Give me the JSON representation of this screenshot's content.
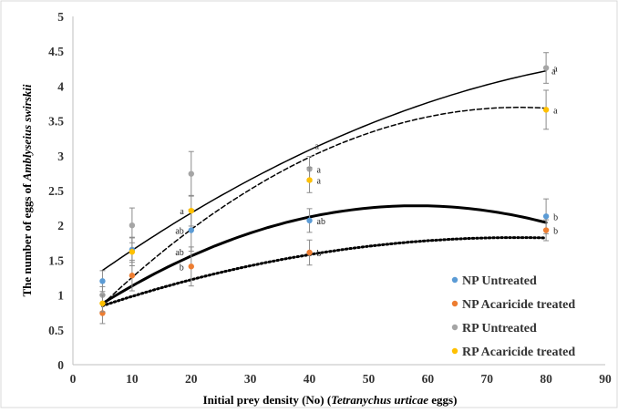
{
  "chart_data": {
    "type": "scatter",
    "title": "",
    "xlabel_prefix": "Initial prey density (No) (",
    "xlabel_italic": "Tetranychus urticae",
    "xlabel_suffix": " eggs)",
    "ylabel_prefix": "The number of eggs of ",
    "ylabel_italic": "Amblyseius swirskii",
    "xlim": [
      0,
      90
    ],
    "ylim": [
      0,
      5
    ],
    "xticks": [
      0,
      10,
      20,
      30,
      40,
      50,
      60,
      70,
      80,
      90
    ],
    "yticks": [
      0,
      0.5,
      1,
      1.5,
      2,
      2.5,
      3,
      3.5,
      4,
      4.5,
      5
    ],
    "grid": false,
    "legend_position": "bottom-right",
    "x": [
      5,
      10,
      20,
      40,
      80
    ],
    "series": [
      {
        "name": "NP Untreated",
        "color": "#5b9bd5",
        "values": [
          1.2,
          1.65,
          1.93,
          2.07,
          2.13
        ],
        "errors": [
          0.15,
          0.18,
          0.3,
          0.17,
          0.25
        ],
        "trend": [
          0.6,
          0.058,
          -0.0005
        ],
        "trend_style": "thick-solid",
        "letters": [
          "",
          "",
          "ab",
          "ab",
          "b"
        ]
      },
      {
        "name": "NP Acaricide treated",
        "color": "#ed7d31",
        "values": [
          0.74,
          1.28,
          1.41,
          1.61,
          1.93
        ],
        "errors": [
          0.15,
          0.22,
          0.28,
          0.18,
          0.15
        ],
        "trend": [
          0.7,
          0.03,
          -0.0002
        ],
        "trend_style": "dotted",
        "letters": [
          "",
          "",
          "b",
          "b",
          "b"
        ]
      },
      {
        "name": "RP Untreated",
        "color": "#a5a5a5",
        "values": [
          1.0,
          2.0,
          2.74,
          2.81,
          4.26
        ],
        "errors": [
          0.12,
          0.25,
          0.32,
          0.18,
          0.22
        ],
        "trend": [
          1.05,
          0.062,
          -0.00028
        ],
        "trend_style": "solid",
        "letters": [
          "",
          "",
          "",
          "a",
          "a"
        ]
      },
      {
        "name": "RP Acaricide treated",
        "color": "#ffc000",
        "values": [
          0.88,
          1.62,
          2.21,
          2.65,
          3.66
        ],
        "errors": [
          0.12,
          0.2,
          0.22,
          0.18,
          0.28
        ],
        "trend": [
          0.45,
          0.086,
          -0.00057
        ],
        "trend_style": "dashed",
        "letters": [
          "",
          "",
          "a",
          "a",
          "a"
        ]
      }
    ],
    "annotations": [
      {
        "text": "a",
        "x": 40,
        "y": 3.15
      },
      {
        "text": "a",
        "x": 80,
        "y": 4.22
      },
      {
        "text": "ab",
        "x": 20,
        "y": 1.62
      }
    ]
  }
}
